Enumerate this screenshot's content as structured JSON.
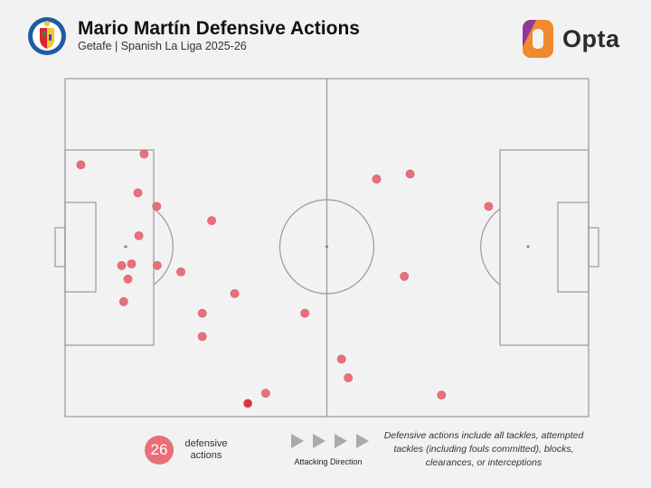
{
  "header": {
    "title": "Mario Martín Defensive Actions",
    "subtitle": "Getafe | Spanish La Liga 2025-26",
    "brand": "Opta",
    "club_logo": "getafe-crest-icon",
    "brand_logo": "opta-logo-icon"
  },
  "colors": {
    "background": "#f2f2f2",
    "pitch_lines": "#999999",
    "action_marker": "#e8707a",
    "action_marker_highlight": "#e03040",
    "direction_arrow": "#aaaaaa",
    "brand_orange": "#f08a2c",
    "brand_purple": "#8c3a9a"
  },
  "chart_data": {
    "type": "scatter",
    "title": "Mario Martín Defensive Actions",
    "subtitle": "Getafe | Spanish La Liga 2025-26",
    "xlim": [
      0,
      100
    ],
    "ylim": [
      0,
      100
    ],
    "x_meaning": "pitch length, attacking left to right",
    "y_meaning": "pitch width, bottom to top",
    "grid": false,
    "legend": "none",
    "points": [
      {
        "x": 3.0,
        "y": 74.5
      },
      {
        "x": 15.1,
        "y": 77.7
      },
      {
        "x": 13.9,
        "y": 66.2
      },
      {
        "x": 17.5,
        "y": 62.2
      },
      {
        "x": 14.1,
        "y": 53.5
      },
      {
        "x": 28.0,
        "y": 58.0
      },
      {
        "x": 10.8,
        "y": 44.7
      },
      {
        "x": 12.7,
        "y": 45.2
      },
      {
        "x": 17.6,
        "y": 44.7
      },
      {
        "x": 12.0,
        "y": 40.7
      },
      {
        "x": 22.1,
        "y": 42.8
      },
      {
        "x": 11.2,
        "y": 34.0
      },
      {
        "x": 32.4,
        "y": 36.4
      },
      {
        "x": 26.2,
        "y": 30.6
      },
      {
        "x": 45.8,
        "y": 30.6
      },
      {
        "x": 26.2,
        "y": 23.7
      },
      {
        "x": 52.8,
        "y": 17.0
      },
      {
        "x": 54.1,
        "y": 11.5
      },
      {
        "x": 38.3,
        "y": 6.9
      },
      {
        "x": 34.9,
        "y": 3.9,
        "highlight": true
      },
      {
        "x": 71.9,
        "y": 6.4
      },
      {
        "x": 59.5,
        "y": 70.3
      },
      {
        "x": 65.9,
        "y": 71.8
      },
      {
        "x": 64.8,
        "y": 41.5
      },
      {
        "x": 80.9,
        "y": 62.2
      },
      {
        "x": 59.5,
        "y": 70.3
      }
    ],
    "count": "26",
    "count_label": "defensive actions",
    "direction_label": "Attacking Direction",
    "note": "Defensive actions include all tackles, attempted tackles (including fouls committed), blocks, clearances, or interceptions"
  }
}
